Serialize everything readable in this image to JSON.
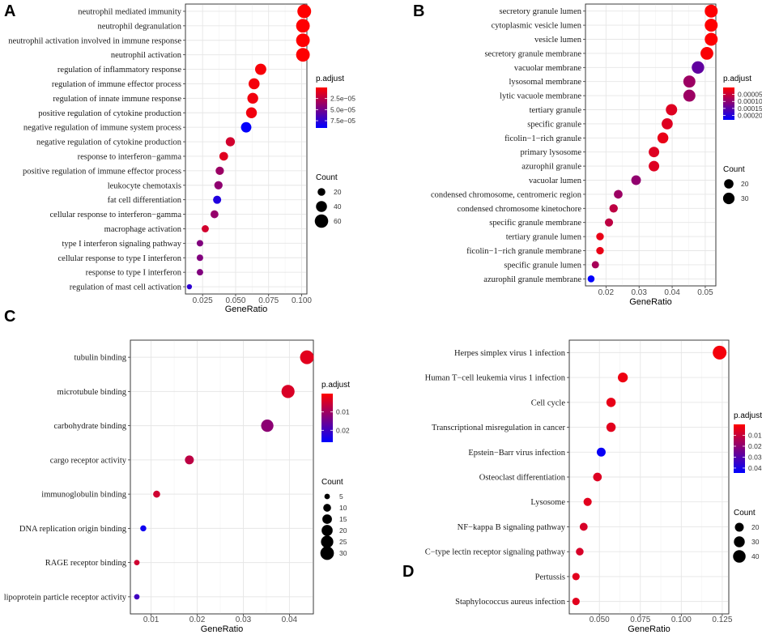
{
  "colors": {
    "low_padj": "#ff0000",
    "high_padj": "#0000ff",
    "panel_border": "#333333",
    "grid": "#e6e6e6"
  },
  "chart_data": [
    {
      "id": "A",
      "type": "scatter",
      "panel_label": "A",
      "xlabel": "GeneRatio",
      "xlim": [
        0.012,
        0.104
      ],
      "xticks": [
        0.025,
        0.05,
        0.075,
        0.1
      ],
      "xtick_labels": [
        "0.025",
        "0.050",
        "0.075",
        "0.100"
      ],
      "categories": [
        "neutrophil mediated immunity",
        "neutrophil degranulation",
        "neutrophil activation involved in immune response",
        "neutrophil activation",
        "regulation of inflammatory response",
        "regulation of immune effector process",
        "regulation of innate immune response",
        "positive regulation of cytokine production",
        "negative regulation of immune system process",
        "negative regulation of cytokine production",
        "response to interferon−gamma",
        "positive regulation of immune effector process",
        "leukocyte chemotaxis",
        "fat cell differentiation",
        "cellular response to interferon−gamma",
        "macrophage activation",
        "type I interferon signaling pathway",
        "cellular response to type I interferon",
        "response to type I interferon",
        "regulation of mast cell activation"
      ],
      "gene_ratio": [
        0.102,
        0.101,
        0.101,
        0.101,
        0.069,
        0.064,
        0.063,
        0.062,
        0.058,
        0.046,
        0.041,
        0.038,
        0.037,
        0.036,
        0.034,
        0.027,
        0.023,
        0.023,
        0.023,
        0.015
      ],
      "count": [
        63,
        62,
        62,
        62,
        42,
        40,
        39,
        39,
        36,
        28,
        25,
        23,
        23,
        22,
        21,
        17,
        14,
        14,
        14,
        9
      ],
      "p_adjust": [
        1e-07,
        2e-07,
        2e-07,
        2e-07,
        3e-06,
        4e-06,
        5e-06,
        5e-06,
        9e-05,
        1.6e-05,
        1.1e-05,
        3.6e-05,
        4e-05,
        8e-05,
        3.8e-05,
        1.6e-05,
        4.5e-05,
        4.5e-05,
        4.5e-05,
        7.5e-05
      ],
      "legend": {
        "color_title": "p.adjust",
        "color_range": [
          0,
          9.14e-05
        ],
        "color_ticks": [
          2.5e-05,
          5e-05,
          7.5e-05
        ],
        "color_tick_labels": [
          "2.5e−05",
          "5.0e−05",
          "7.5e−05"
        ],
        "size_title": "Count",
        "size_values": [
          20,
          40,
          60
        ],
        "size_labels": [
          "20",
          "40",
          "60"
        ]
      }
    },
    {
      "id": "B",
      "type": "scatter",
      "panel_label": "B",
      "xlabel": "GeneRatio",
      "xlim": [
        0.0138,
        0.0532
      ],
      "xticks": [
        0.02,
        0.03,
        0.04,
        0.05
      ],
      "xtick_labels": [
        "0.02",
        "0.03",
        "0.04",
        "0.05"
      ],
      "categories": [
        "secretory granule lumen",
        "cytoplasmic vesicle lumen",
        "vesicle lumen",
        "secretory granule membrane",
        "vacuolar membrane",
        "lysosomal membrane",
        "lytic vacuole membrane",
        "tertiary granule",
        "specific granule",
        "ficolin−1−rich granule",
        "primary lysosome",
        "azurophil granule",
        "vacuolar lumen",
        "condensed chromosome, centromeric region",
        "condensed chromosome kinetochore",
        "specific granule membrane",
        "tertiary granule lumen",
        "ficolin−1−rich granule membrane",
        "specific granule lumen",
        "azurophil granule membrane"
      ],
      "gene_ratio": [
        0.0518,
        0.0518,
        0.0518,
        0.0505,
        0.0478,
        0.0452,
        0.0452,
        0.0398,
        0.0385,
        0.0372,
        0.0345,
        0.0345,
        0.0291,
        0.0237,
        0.0223,
        0.0209,
        0.0182,
        0.0182,
        0.0168,
        0.0155
      ],
      "count": [
        38,
        38,
        38,
        37,
        35,
        33,
        33,
        29,
        28,
        27,
        25,
        25,
        21,
        17,
        16,
        15,
        13,
        13,
        12,
        11
      ],
      "p_adjust": [
        1e-06,
        1e-06,
        1e-06,
        5e-06,
        0.000145,
        9e-05,
        9e-05,
        3e-05,
        3e-05,
        2e-05,
        3e-05,
        3e-05,
        0.0001,
        9e-05,
        6e-05,
        6e-05,
        2e-05,
        2e-05,
        8e-05,
        0.00023
      ],
      "legend": {
        "color_title": "p.adjust",
        "color_range": [
          0,
          0.000232
        ],
        "color_ticks": [
          5e-05,
          0.0001,
          0.00015,
          0.0002
        ],
        "color_tick_labels": [
          "0.00005",
          "0.00010",
          "0.00015",
          "0.00020"
        ],
        "size_title": "Count",
        "size_values": [
          20,
          30
        ],
        "size_labels": [
          "20",
          "30"
        ]
      }
    },
    {
      "id": "C",
      "type": "scatter",
      "panel_label": "C",
      "xlabel": "GeneRatio",
      "xlim": [
        0.0055,
        0.0452
      ],
      "xticks": [
        0.01,
        0.02,
        0.03,
        0.04
      ],
      "xtick_labels": [
        "0.01",
        "0.02",
        "0.03",
        "0.04"
      ],
      "categories": [
        "tubulin binding",
        "microtubule binding",
        "carbohydrate binding",
        "cargo receptor activity",
        "immunoglobulin binding",
        "DNA replication origin binding",
        "RAGE receptor binding",
        "lipoprotein particle receptor activity"
      ],
      "gene_ratio": [
        0.0438,
        0.0397,
        0.0352,
        0.0183,
        0.0112,
        0.0083,
        0.0069,
        0.0069
      ],
      "count": [
        31,
        28,
        25,
        13,
        8,
        6,
        5,
        5
      ],
      "p_adjust": [
        0.003,
        0.004,
        0.012,
        0.007,
        0.005,
        0.025,
        0.005,
        0.02
      ],
      "legend": {
        "color_title": "p.adjust",
        "color_range": [
          0.0,
          0.0265
        ],
        "color_ticks": [
          0.01,
          0.02
        ],
        "color_tick_labels": [
          "0.01",
          "0.02"
        ],
        "size_title": "Count",
        "size_values": [
          5,
          10,
          15,
          20,
          25,
          30
        ],
        "size_labels": [
          "5",
          "10",
          "15",
          "20",
          "25",
          "30"
        ]
      }
    },
    {
      "id": "D",
      "type": "scatter",
      "panel_label": "D",
      "xlabel": "GeneRatio",
      "xlim": [
        0.0316,
        0.129
      ],
      "xticks": [
        0.05,
        0.075,
        0.1,
        0.125
      ],
      "xtick_labels": [
        "0.050",
        "0.075",
        "0.100",
        "0.125"
      ],
      "categories": [
        "Herpes simplex virus 1 infection",
        "Human T−cell leukemia virus 1 infection",
        "Cell cycle",
        "Transcriptional misregulation in cancer",
        "Epstein−Barr virus infection",
        "Osteoclast differentiation",
        "Lysosome",
        "NF−kappa B signaling pathway",
        "C−type lectin receptor signaling pathway",
        "Pertussis",
        "Staphylococcus aureus infection"
      ],
      "gene_ratio": [
        0.1234,
        0.0643,
        0.0571,
        0.0571,
        0.0511,
        0.0488,
        0.0428,
        0.0404,
        0.038,
        0.0357,
        0.0357
      ],
      "count": [
        48,
        25,
        22,
        22,
        20,
        19,
        17,
        16,
        15,
        14,
        14
      ],
      "p_adjust": [
        0.002,
        0.003,
        0.004,
        0.005,
        0.043,
        0.006,
        0.005,
        0.007,
        0.007,
        0.005,
        0.005
      ],
      "legend": {
        "color_title": "p.adjust",
        "color_range": [
          0.0,
          0.0445
        ],
        "color_ticks": [
          0.01,
          0.02,
          0.03,
          0.04
        ],
        "color_tick_labels": [
          "0.01",
          "0.02",
          "0.03",
          "0.04"
        ],
        "size_title": "Count",
        "size_values": [
          20,
          30,
          40
        ],
        "size_labels": [
          "20",
          "30",
          "40"
        ]
      }
    }
  ]
}
